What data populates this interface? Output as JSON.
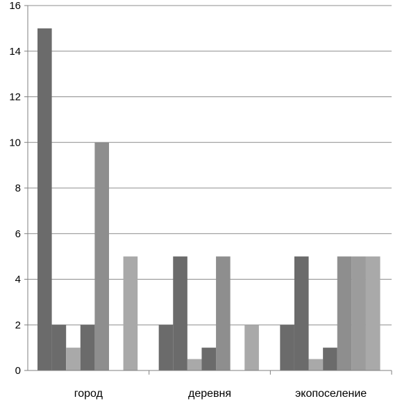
{
  "chart_data": {
    "type": "bar",
    "title": "",
    "xlabel": "",
    "ylabel": "",
    "ylim": [
      0,
      16
    ],
    "yticks": [
      0,
      2,
      4,
      6,
      8,
      10,
      12,
      14,
      16
    ],
    "categories": [
      "город",
      "деревня",
      "экопоселение"
    ],
    "grid": true,
    "legend": "none",
    "series": [
      {
        "values": [
          15,
          2,
          2
        ],
        "color": "#6b6b6b"
      },
      {
        "values": [
          2,
          5,
          5
        ],
        "color": "#6b6b6b"
      },
      {
        "values": [
          1,
          0.5,
          0.5
        ],
        "color": "#a9a9a9"
      },
      {
        "values": [
          2,
          1,
          1
        ],
        "color": "#6b6b6b"
      },
      {
        "values": [
          10,
          5,
          5
        ],
        "color": "#8e8e8e"
      },
      {
        "values": [
          0,
          0,
          5
        ],
        "color": "#9c9c9c"
      },
      {
        "values": [
          5,
          2,
          5
        ],
        "color": "#a9a9a9"
      }
    ]
  }
}
